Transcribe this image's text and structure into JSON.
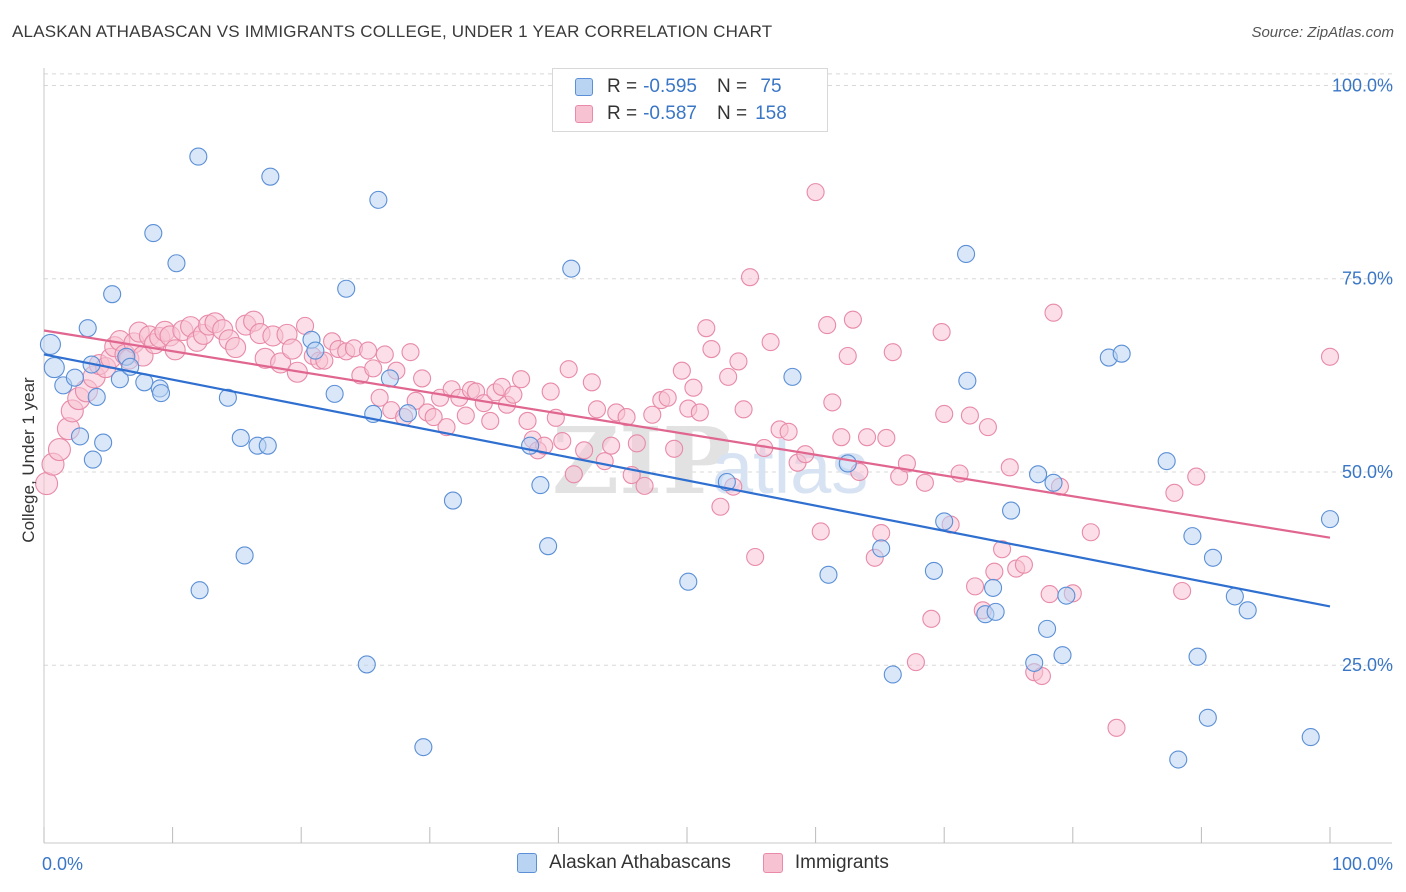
{
  "header": {
    "title": "ALASKAN ATHABASCAN VS IMMIGRANTS COLLEGE, UNDER 1 YEAR CORRELATION CHART",
    "source": "Source: ZipAtlas.com"
  },
  "legend": {
    "rows": [
      {
        "r_label": "R =",
        "r_value": "-0.595",
        "n_label": "N =",
        "n_value": " 75"
      },
      {
        "r_label": "R =",
        "r_value": "-0.587",
        "n_label": "N =",
        "n_value": "158"
      }
    ]
  },
  "watermark": {
    "zip": "ZIP",
    "atlas": "atlas"
  },
  "colors": {
    "blue_fill": "#b9d3f3",
    "blue_stroke": "#5b8fd6",
    "blue_line": "#2f6fd0",
    "pink_fill": "#f7c3d3",
    "pink_stroke": "#e88aa8",
    "pink_line": "#e0668f",
    "grid": "#d8d8d8",
    "tick_label": "#3a76c6"
  },
  "chart_data": {
    "type": "scatter",
    "title": "ALASKAN ATHABASCAN VS IMMIGRANTS COLLEGE, UNDER 1 YEAR CORRELATION CHART",
    "xlabel": "",
    "ylabel": "College, Under 1 year",
    "xlim": [
      0,
      100
    ],
    "ylim": [
      2,
      102
    ],
    "x_tick_labels": [
      "0.0%",
      "100.0%"
    ],
    "y_ticks": [
      25,
      50,
      75,
      100
    ],
    "y_tick_labels": [
      "25.0%",
      "50.0%",
      "75.0%",
      "100.0%"
    ],
    "grid": true,
    "legend_position": "top-center",
    "series": [
      {
        "name": "Alaskan Athabascans",
        "color": "#5b8fd6",
        "trend": {
          "x": [
            0,
            100
          ],
          "y": [
            65.2,
            32.6
          ]
        },
        "points": [
          [
            0.5,
            66.5
          ],
          [
            0.8,
            63.5
          ],
          [
            1.5,
            61.2
          ],
          [
            2.4,
            62.2
          ],
          [
            2.8,
            54.6
          ],
          [
            3.4,
            68.6
          ],
          [
            3.7,
            63.9
          ],
          [
            3.8,
            51.6
          ],
          [
            4.1,
            59.7
          ],
          [
            4.6,
            53.8
          ],
          [
            5.3,
            73.0
          ],
          [
            5.9,
            62.0
          ],
          [
            6.4,
            64.9
          ],
          [
            6.7,
            63.6
          ],
          [
            7.8,
            61.6
          ],
          [
            8.5,
            80.9
          ],
          [
            9.0,
            60.8
          ],
          [
            9.1,
            60.2
          ],
          [
            10.3,
            77.0
          ],
          [
            12.0,
            90.8
          ],
          [
            12.1,
            34.7
          ],
          [
            14.3,
            59.6
          ],
          [
            15.3,
            54.4
          ],
          [
            15.6,
            39.2
          ],
          [
            16.6,
            53.4
          ],
          [
            17.4,
            53.4
          ],
          [
            17.6,
            88.2
          ],
          [
            20.8,
            67.1
          ],
          [
            21.1,
            65.7
          ],
          [
            22.6,
            60.1
          ],
          [
            23.5,
            73.7
          ],
          [
            25.1,
            25.1
          ],
          [
            25.6,
            57.5
          ],
          [
            26.0,
            85.2
          ],
          [
            26.9,
            62.1
          ],
          [
            28.3,
            57.6
          ],
          [
            29.5,
            14.4
          ],
          [
            31.8,
            46.3
          ],
          [
            37.8,
            53.4
          ],
          [
            38.6,
            48.3
          ],
          [
            39.2,
            40.4
          ],
          [
            41.0,
            76.3
          ],
          [
            50.1,
            35.8
          ],
          [
            53.1,
            48.7
          ],
          [
            58.2,
            62.3
          ],
          [
            61.0,
            36.7
          ],
          [
            62.5,
            51.1
          ],
          [
            65.1,
            40.1
          ],
          [
            66.0,
            23.8
          ],
          [
            69.2,
            37.2
          ],
          [
            70.0,
            43.6
          ],
          [
            71.7,
            78.2
          ],
          [
            71.8,
            61.8
          ],
          [
            73.2,
            31.6
          ],
          [
            73.8,
            35.0
          ],
          [
            74.0,
            31.9
          ],
          [
            75.2,
            45.0
          ],
          [
            77.0,
            25.3
          ],
          [
            77.3,
            49.7
          ],
          [
            78.0,
            29.7
          ],
          [
            78.5,
            48.6
          ],
          [
            79.2,
            26.3
          ],
          [
            79.5,
            34.0
          ],
          [
            82.8,
            64.8
          ],
          [
            83.8,
            65.3
          ],
          [
            87.3,
            51.4
          ],
          [
            88.2,
            12.8
          ],
          [
            89.3,
            41.7
          ],
          [
            89.7,
            26.1
          ],
          [
            90.5,
            18.2
          ],
          [
            90.9,
            38.9
          ],
          [
            92.6,
            33.9
          ],
          [
            93.6,
            32.1
          ],
          [
            98.5,
            15.7
          ],
          [
            100.0,
            43.9
          ]
        ]
      },
      {
        "name": "Immigrants",
        "color": "#e88aa8",
        "trend": {
          "x": [
            0,
            100
          ],
          "y": [
            68.3,
            41.5
          ]
        },
        "points": [
          [
            0.2,
            48.5
          ],
          [
            0.7,
            51.0
          ],
          [
            1.2,
            52.9
          ],
          [
            1.9,
            55.6
          ],
          [
            2.2,
            57.9
          ],
          [
            2.7,
            59.5
          ],
          [
            3.3,
            60.5
          ],
          [
            3.9,
            62.3
          ],
          [
            4.3,
            63.9
          ],
          [
            4.8,
            63.5
          ],
          [
            5.2,
            64.7
          ],
          [
            5.5,
            66.2
          ],
          [
            5.9,
            67.0
          ],
          [
            6.3,
            65.2
          ],
          [
            6.6,
            64.6
          ],
          [
            7.0,
            66.7
          ],
          [
            7.4,
            68.1
          ],
          [
            7.7,
            65.0
          ],
          [
            8.2,
            67.6
          ],
          [
            8.6,
            66.6
          ],
          [
            9.0,
            67.4
          ],
          [
            9.4,
            68.2
          ],
          [
            9.8,
            67.6
          ],
          [
            10.2,
            65.8
          ],
          [
            10.8,
            68.3
          ],
          [
            11.4,
            68.8
          ],
          [
            11.9,
            66.9
          ],
          [
            12.4,
            67.8
          ],
          [
            12.8,
            69.0
          ],
          [
            13.3,
            69.3
          ],
          [
            13.9,
            68.4
          ],
          [
            14.4,
            67.1
          ],
          [
            14.9,
            66.1
          ],
          [
            15.7,
            69.0
          ],
          [
            16.3,
            69.5
          ],
          [
            16.8,
            67.9
          ],
          [
            17.2,
            64.7
          ],
          [
            17.8,
            67.6
          ],
          [
            18.4,
            64.1
          ],
          [
            18.9,
            67.8
          ],
          [
            19.3,
            65.9
          ],
          [
            19.7,
            62.9
          ],
          [
            20.3,
            68.9
          ],
          [
            20.9,
            65.0
          ],
          [
            21.4,
            64.4
          ],
          [
            21.8,
            64.4
          ],
          [
            22.4,
            66.9
          ],
          [
            22.9,
            65.9
          ],
          [
            23.5,
            65.6
          ],
          [
            24.1,
            66.0
          ],
          [
            24.6,
            62.5
          ],
          [
            25.2,
            65.7
          ],
          [
            25.6,
            63.4
          ],
          [
            26.1,
            59.6
          ],
          [
            26.5,
            65.2
          ],
          [
            27.0,
            58.0
          ],
          [
            27.4,
            63.1
          ],
          [
            28.0,
            57.1
          ],
          [
            28.5,
            65.5
          ],
          [
            28.9,
            59.2
          ],
          [
            29.4,
            62.1
          ],
          [
            29.8,
            57.7
          ],
          [
            30.3,
            57.1
          ],
          [
            30.8,
            59.6
          ],
          [
            31.3,
            55.8
          ],
          [
            31.7,
            60.7
          ],
          [
            32.3,
            59.6
          ],
          [
            32.8,
            57.3
          ],
          [
            33.2,
            60.6
          ],
          [
            33.6,
            60.4
          ],
          [
            34.2,
            58.9
          ],
          [
            34.7,
            56.6
          ],
          [
            35.1,
            60.3
          ],
          [
            35.6,
            61.0
          ],
          [
            36.0,
            58.7
          ],
          [
            36.5,
            60.0
          ],
          [
            37.1,
            62.0
          ],
          [
            37.6,
            56.6
          ],
          [
            38.0,
            54.2
          ],
          [
            38.4,
            52.8
          ],
          [
            38.9,
            53.4
          ],
          [
            39.4,
            60.4
          ],
          [
            39.8,
            57.0
          ],
          [
            40.3,
            54.0
          ],
          [
            40.8,
            63.3
          ],
          [
            41.2,
            49.7
          ],
          [
            42.0,
            52.8
          ],
          [
            42.6,
            61.6
          ],
          [
            43.0,
            58.1
          ],
          [
            43.6,
            51.4
          ],
          [
            44.1,
            53.4
          ],
          [
            44.5,
            57.7
          ],
          [
            45.3,
            57.1
          ],
          [
            45.7,
            49.6
          ],
          [
            46.1,
            53.7
          ],
          [
            46.7,
            48.2
          ],
          [
            47.3,
            57.4
          ],
          [
            48.0,
            59.3
          ],
          [
            48.5,
            59.6
          ],
          [
            49.0,
            53.0
          ],
          [
            49.6,
            63.1
          ],
          [
            50.1,
            58.2
          ],
          [
            50.5,
            60.9
          ],
          [
            51.0,
            57.7
          ],
          [
            51.5,
            68.6
          ],
          [
            51.9,
            65.9
          ],
          [
            52.6,
            45.5
          ],
          [
            53.2,
            62.3
          ],
          [
            53.6,
            48.1
          ],
          [
            54.0,
            64.3
          ],
          [
            54.4,
            58.1
          ],
          [
            54.9,
            75.2
          ],
          [
            55.3,
            39.0
          ],
          [
            56.0,
            53.1
          ],
          [
            56.5,
            66.8
          ],
          [
            57.2,
            55.5
          ],
          [
            57.9,
            55.2
          ],
          [
            58.6,
            51.2
          ],
          [
            59.2,
            52.3
          ],
          [
            60.0,
            86.2
          ],
          [
            60.4,
            42.3
          ],
          [
            60.9,
            69.0
          ],
          [
            61.3,
            59.0
          ],
          [
            62.0,
            54.5
          ],
          [
            62.5,
            65.0
          ],
          [
            62.9,
            69.7
          ],
          [
            63.4,
            50.0
          ],
          [
            64.0,
            54.5
          ],
          [
            64.6,
            38.9
          ],
          [
            65.1,
            42.1
          ],
          [
            65.5,
            54.4
          ],
          [
            66.0,
            65.5
          ],
          [
            66.5,
            49.4
          ],
          [
            67.1,
            51.1
          ],
          [
            67.8,
            25.4
          ],
          [
            68.5,
            48.6
          ],
          [
            69.0,
            31.0
          ],
          [
            69.8,
            68.1
          ],
          [
            70.0,
            57.5
          ],
          [
            70.5,
            43.2
          ],
          [
            71.2,
            49.8
          ],
          [
            72.0,
            57.3
          ],
          [
            72.4,
            35.2
          ],
          [
            73.0,
            32.1
          ],
          [
            73.4,
            55.8
          ],
          [
            73.9,
            37.1
          ],
          [
            74.5,
            40.0
          ],
          [
            75.1,
            50.6
          ],
          [
            75.6,
            37.5
          ],
          [
            76.2,
            38.0
          ],
          [
            77.0,
            24.1
          ],
          [
            77.6,
            23.6
          ],
          [
            78.2,
            34.2
          ],
          [
            78.5,
            70.6
          ],
          [
            79.0,
            48.1
          ],
          [
            80.0,
            34.3
          ],
          [
            81.4,
            42.2
          ],
          [
            83.4,
            16.9
          ],
          [
            87.9,
            47.3
          ],
          [
            88.5,
            34.6
          ],
          [
            89.6,
            49.4
          ],
          [
            100.0,
            64.9
          ]
        ]
      }
    ]
  }
}
